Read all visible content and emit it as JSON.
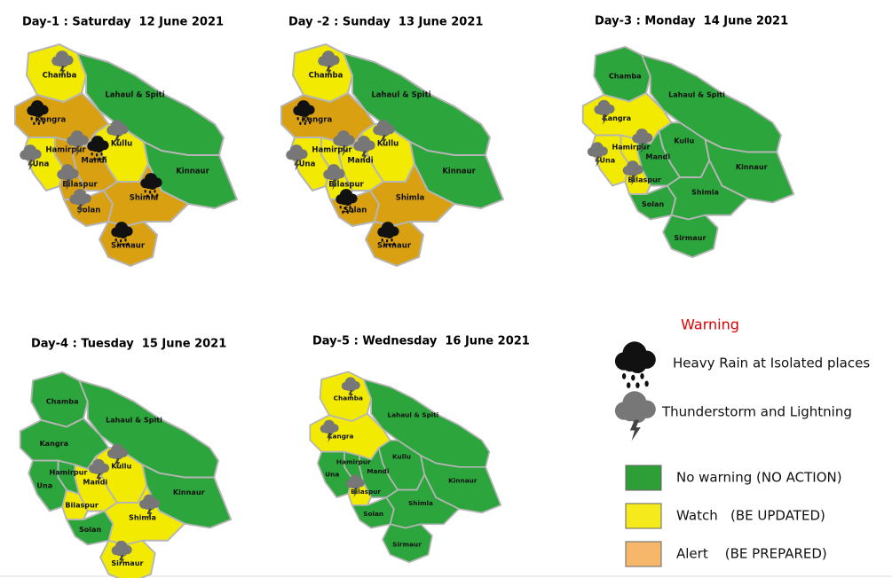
{
  "maps": [
    {
      "title": "Day-1 : Saturday  12 June 2021",
      "districts": [
        {
          "name": "Chamba",
          "color": "#f2ea00",
          "icon": "#777777"
        },
        {
          "name": "Lahaul & Spiti",
          "color": "#2ca53c"
        },
        {
          "name": "Kangra",
          "color": "#d9a012",
          "icon": "#111111"
        },
        {
          "name": "Kullu",
          "color": "#f2ea00",
          "icon": "#777777"
        },
        {
          "name": "Kinnaur",
          "color": "#2ca53c"
        },
        {
          "name": "Hamirpur",
          "color": "#d9a012",
          "icon": "#777777"
        },
        {
          "name": "Una",
          "color": "#f2ea00",
          "icon": "#777777"
        },
        {
          "name": "Mandi",
          "color": "#d9a012",
          "icon": "#111111"
        },
        {
          "name": "Bilaspur",
          "color": "#d9a012",
          "icon": "#777777"
        },
        {
          "name": "Solan",
          "color": "#d9a012",
          "icon": "#777777"
        },
        {
          "name": "Shimla",
          "color": "#d9a012",
          "icon": "#111111"
        },
        {
          "name": "Sirmaur",
          "color": "#d9a012",
          "icon": "#111111"
        }
      ]
    },
    {
      "title": "Day -2 : Sunday  13 June 2021",
      "districts": [
        {
          "name": "Chamba",
          "color": "#f2ea00",
          "icon": "#777777"
        },
        {
          "name": "Lahaul & Spiti",
          "color": "#2ca53c"
        },
        {
          "name": "Kangra",
          "color": "#d9a012",
          "icon": "#111111"
        },
        {
          "name": "Kullu",
          "color": "#f2ea00",
          "icon": "#777777"
        },
        {
          "name": "Kinnaur",
          "color": "#2ca53c"
        },
        {
          "name": "Hamirpur",
          "color": "#f2ea00",
          "icon": "#777777"
        },
        {
          "name": "Una",
          "color": "#f2ea00",
          "icon": "#777777"
        },
        {
          "name": "Mandi",
          "color": "#f2ea00",
          "icon": "#777777"
        },
        {
          "name": "Bilaspur",
          "color": "#f2ea00",
          "icon": "#777777"
        },
        {
          "name": "Solan",
          "color": "#d9a012",
          "icon": "#111111"
        },
        {
          "name": "Shimla",
          "color": "#d9a012"
        },
        {
          "name": "Sirmaur",
          "color": "#d9a012",
          "icon": "#111111"
        }
      ]
    },
    {
      "title": "Day-3 : Monday  14 June 2021",
      "districts": [
        {
          "name": "Chamba",
          "color": "#2ca53c"
        },
        {
          "name": "Lahaul & Spiti",
          "color": "#2ca53c"
        },
        {
          "name": "Kangra",
          "color": "#f2ea00",
          "icon": "#777777"
        },
        {
          "name": "Kullu",
          "color": "#2ca53c"
        },
        {
          "name": "Kinnaur",
          "color": "#2ca53c"
        },
        {
          "name": "Hamirpur",
          "color": "#f2ea00",
          "icon": "#777777"
        },
        {
          "name": "Una",
          "color": "#f2ea00",
          "icon": "#777777"
        },
        {
          "name": "Mandi",
          "color": "#2ca53c"
        },
        {
          "name": "Bilaspur",
          "color": "#f2ea00",
          "icon": "#777777"
        },
        {
          "name": "Solan",
          "color": "#2ca53c"
        },
        {
          "name": "Shimla",
          "color": "#2ca53c"
        },
        {
          "name": "Sirmaur",
          "color": "#2ca53c"
        }
      ]
    },
    {
      "title": "Day-4 : Tuesday  15 June 2021",
      "districts": [
        {
          "name": "Chamba",
          "color": "#2ca53c"
        },
        {
          "name": "Lahaul & Spiti",
          "color": "#2ca53c"
        },
        {
          "name": "Kangra",
          "color": "#2ca53c"
        },
        {
          "name": "Kullu",
          "color": "#f2ea00",
          "icon": "#777777"
        },
        {
          "name": "Kinnaur",
          "color": "#2ca53c"
        },
        {
          "name": "Hamirpur",
          "color": "#2ca53c"
        },
        {
          "name": "Una",
          "color": "#2ca53c"
        },
        {
          "name": "Mandi",
          "color": "#f2ea00",
          "icon": "#777777"
        },
        {
          "name": "Bilaspur",
          "color": "#f2ea00"
        },
        {
          "name": "Solan",
          "color": "#2ca53c"
        },
        {
          "name": "Shimla",
          "color": "#f2ea00",
          "icon": "#777777"
        },
        {
          "name": "Sirmaur",
          "color": "#f2ea00",
          "icon": "#777777"
        }
      ]
    },
    {
      "title": "Day-5 : Wednesday  16 June 2021",
      "districts": [
        {
          "name": "Chamba",
          "color": "#f2ea00",
          "icon": "#777777"
        },
        {
          "name": "Lahaul & Spiti",
          "color": "#2ca53c"
        },
        {
          "name": "Kangra",
          "color": "#f2ea00",
          "icon": "#777777"
        },
        {
          "name": "Kullu",
          "color": "#2ca53c"
        },
        {
          "name": "Kinnaur",
          "color": "#2ca53c"
        },
        {
          "name": "Hamirpur",
          "color": "#2ca53c"
        },
        {
          "name": "Una",
          "color": "#2ca53c"
        },
        {
          "name": "Mandi",
          "color": "#2ca53c"
        },
        {
          "name": "Bilaspur",
          "color": "#f2ea00",
          "icon": "#777777"
        },
        {
          "name": "Solan",
          "color": "#2ca53c"
        },
        {
          "name": "Shimla",
          "color": "#2ca53c"
        },
        {
          "name": "Sirmaur",
          "color": "#2ca53c"
        }
      ]
    }
  ],
  "legend": {
    "title": "Warning",
    "icons": [
      {
        "label": "Heavy Rain at Isolated places",
        "color": "#111111"
      },
      {
        "label": "Thunderstorm and Lightning",
        "color": "#777777"
      }
    ],
    "levels": [
      {
        "label": "No warning (NO ACTION)",
        "color": "#2e9e36"
      },
      {
        "label": "Watch   (BE UPDATED)",
        "color": "#f5ea1c"
      },
      {
        "label": "Alert    (BE PREPARED)",
        "color": "#f7b76b"
      }
    ]
  }
}
